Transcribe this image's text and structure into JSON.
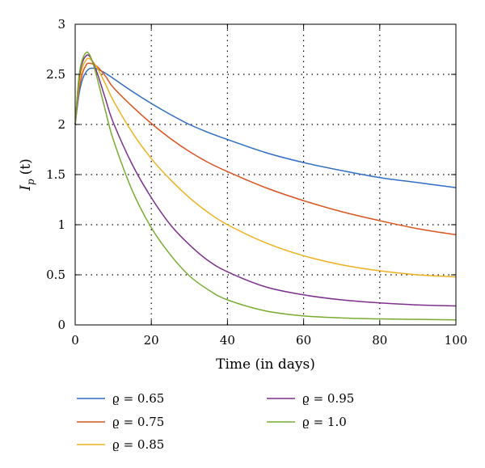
{
  "chart_data": {
    "type": "line",
    "title": "",
    "xlabel": "Time (in days)",
    "ylabel": "I_p (t)",
    "ylabel_parts": {
      "main": "I",
      "sub": "p",
      "rest": "(t)"
    },
    "xlim": [
      0,
      100
    ],
    "ylim": [
      0,
      3
    ],
    "xticks": [
      0,
      20,
      40,
      60,
      80,
      100
    ],
    "yticks": [
      0,
      0.5,
      1,
      1.5,
      2,
      2.5,
      3
    ],
    "xtick_labels": [
      "0",
      "20",
      "40",
      "60",
      "80",
      "100"
    ],
    "ytick_labels": [
      "0",
      "0.5",
      "1",
      "1.5",
      "2",
      "2.5",
      "3"
    ],
    "grid": true,
    "grid_style": "dotted",
    "legend_position": "below",
    "x": [
      0,
      1,
      2,
      3,
      3.5,
      4,
      5,
      6,
      8,
      10,
      15,
      20,
      25,
      30,
      35,
      40,
      50,
      60,
      70,
      80,
      90,
      100
    ],
    "series": [
      {
        "name": "ϱ = 0.65",
        "color": "#2e6ec2",
        "values": [
          2.0,
          2.3,
          2.46,
          2.53,
          2.55,
          2.56,
          2.56,
          2.55,
          2.51,
          2.46,
          2.33,
          2.21,
          2.1,
          2.0,
          1.92,
          1.85,
          1.72,
          1.62,
          1.54,
          1.47,
          1.42,
          1.37
        ]
      },
      {
        "name": "ϱ = 0.75",
        "color": "#d9541e",
        "values": [
          2.0,
          2.35,
          2.52,
          2.6,
          2.61,
          2.61,
          2.6,
          2.57,
          2.48,
          2.37,
          2.18,
          2.01,
          1.86,
          1.73,
          1.62,
          1.53,
          1.37,
          1.24,
          1.13,
          1.04,
          0.96,
          0.9
        ]
      },
      {
        "name": "ϱ = 0.85",
        "color": "#edb120",
        "values": [
          2.0,
          2.4,
          2.58,
          2.65,
          2.66,
          2.65,
          2.61,
          2.55,
          2.4,
          2.24,
          1.92,
          1.66,
          1.45,
          1.27,
          1.12,
          1.0,
          0.82,
          0.69,
          0.6,
          0.54,
          0.5,
          0.48
        ]
      },
      {
        "name": "ϱ = 0.95",
        "color": "#7e2f8e",
        "values": [
          2.0,
          2.45,
          2.63,
          2.69,
          2.69,
          2.67,
          2.59,
          2.49,
          2.25,
          2.02,
          1.6,
          1.27,
          1.0,
          0.8,
          0.64,
          0.53,
          0.38,
          0.3,
          0.25,
          0.22,
          0.2,
          0.19
        ]
      },
      {
        "name": "ϱ = 1.0",
        "color": "#77ac30",
        "values": [
          2.0,
          2.48,
          2.66,
          2.72,
          2.71,
          2.68,
          2.57,
          2.43,
          2.13,
          1.85,
          1.34,
          0.97,
          0.7,
          0.49,
          0.35,
          0.25,
          0.14,
          0.09,
          0.07,
          0.06,
          0.055,
          0.05
        ]
      }
    ]
  }
}
